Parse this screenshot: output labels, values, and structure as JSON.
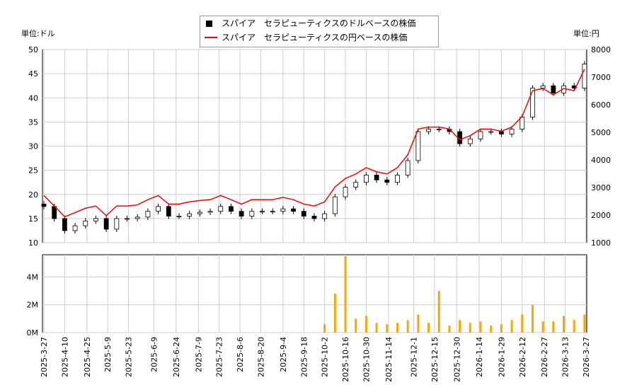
{
  "chart_data": {
    "type": "candlestick+line+bar",
    "legend": {
      "placement": "top-center",
      "items": [
        "スパイア　セラピューティクスのドルベースの株価",
        "スパイア　セラピューティクスの円ベースの株価"
      ]
    },
    "left_unit": "単位:ドル",
    "right_unit": "単位:円",
    "y_left": {
      "range": [
        10,
        50
      ],
      "ticks": [
        "10",
        "15",
        "20",
        "25",
        "30",
        "35",
        "40",
        "45",
        "50"
      ]
    },
    "y_right": {
      "range": [
        1000,
        8000
      ],
      "ticks": [
        "1000",
        "2000",
        "3000",
        "4000",
        "5000",
        "6000",
        "7000",
        "8000"
      ]
    },
    "volume_axis": {
      "range": [
        0,
        5.6
      ],
      "ticks": [
        "0M",
        "2M",
        "4M"
      ]
    },
    "x_ticks": [
      "2025-3-27",
      "2025-4-10",
      "2025-4-25",
      "2025-5-9",
      "2025-5-23",
      "2025-6-9",
      "2025-6-24",
      "2025-7-9",
      "2025-7-23",
      "2025-8-6",
      "2025-8-20",
      "2025-9-4",
      "2025-9-18",
      "2025-10-2",
      "2025-10-16",
      "2025-10-30",
      "2025-11-14",
      "2025-12-1",
      "2025-12-15",
      "2025-12-30",
      "2026-1-14",
      "2026-1-29",
      "2026-2-12",
      "2026-2-27",
      "2026-3-13",
      "2026-3-27"
    ],
    "grid": true,
    "colors": {
      "usd": "#000000",
      "jpy": "#ff0000",
      "volume": "#ffa500"
    },
    "dates": [
      "2025-3-27",
      "2025-4-3",
      "2025-4-10",
      "2025-4-17",
      "2025-4-24",
      "2025-5-1",
      "2025-5-8",
      "2025-5-15",
      "2025-5-22",
      "2025-5-29",
      "2025-6-5",
      "2025-6-12",
      "2025-6-19",
      "2025-6-26",
      "2025-7-3",
      "2025-7-10",
      "2025-7-17",
      "2025-7-24",
      "2025-7-31",
      "2025-8-7",
      "2025-8-14",
      "2025-8-21",
      "2025-8-28",
      "2025-9-4",
      "2025-9-11",
      "2025-9-18",
      "2025-9-25",
      "2025-10-2",
      "2025-10-9",
      "2025-10-16",
      "2025-10-23",
      "2025-10-30",
      "2025-11-6",
      "2025-11-13",
      "2025-11-20",
      "2025-11-27",
      "2025-12-4",
      "2025-12-11",
      "2025-12-18",
      "2025-12-25",
      "2026-1-1",
      "2026-1-8",
      "2026-1-15",
      "2026-1-22",
      "2026-1-29",
      "2026-2-5",
      "2026-2-12",
      "2026-2-19",
      "2026-2-26",
      "2026-3-5",
      "2026-3-12",
      "2026-3-19",
      "2026-3-26"
    ],
    "usd_close": [
      17.5,
      15,
      12.5,
      13.5,
      14.5,
      15,
      12.8,
      15,
      15,
      15.3,
      16.5,
      17.5,
      15.5,
      15.5,
      16,
      16.3,
      16.5,
      17.5,
      16.5,
      15.5,
      16.5,
      16.5,
      16.5,
      17,
      16.5,
      15.5,
      15,
      16,
      19.5,
      21.5,
      22.5,
      24,
      23,
      22.5,
      24,
      27,
      33,
      33.5,
      33.5,
      33,
      30.5,
      31.5,
      33,
      33,
      32.5,
      33.5,
      36,
      42,
      42.5,
      41,
      42.5,
      42,
      47
    ],
    "jpy_close": [
      2710,
      2330,
      1940,
      2090,
      2250,
      2330,
      1980,
      2330,
      2330,
      2370,
      2560,
      2710,
      2400,
      2400,
      2480,
      2530,
      2560,
      2710,
      2560,
      2400,
      2560,
      2560,
      2560,
      2640,
      2560,
      2400,
      2330,
      2480,
      3020,
      3330,
      3490,
      3720,
      3570,
      3490,
      3720,
      4190,
      5120,
      5190,
      5190,
      5120,
      4730,
      4880,
      5120,
      5120,
      5040,
      5190,
      5580,
      6510,
      6590,
      6360,
      6590,
      6510,
      7290
    ],
    "volume_millions": [
      0,
      0,
      0,
      0,
      0,
      0,
      0,
      0,
      0,
      0,
      0,
      0,
      0,
      0,
      0,
      0,
      0,
      0,
      0,
      0,
      0,
      0,
      0,
      0,
      0,
      0,
      0,
      0.6,
      2.8,
      5.5,
      1.0,
      1.2,
      0.7,
      0.6,
      0.7,
      0.9,
      1.3,
      0.7,
      3.0,
      0.5,
      0.9,
      0.7,
      0.8,
      0.5,
      0.6,
      0.9,
      1.3,
      2.0,
      0.8,
      0.8,
      1.2,
      0.9,
      1.3
    ]
  }
}
